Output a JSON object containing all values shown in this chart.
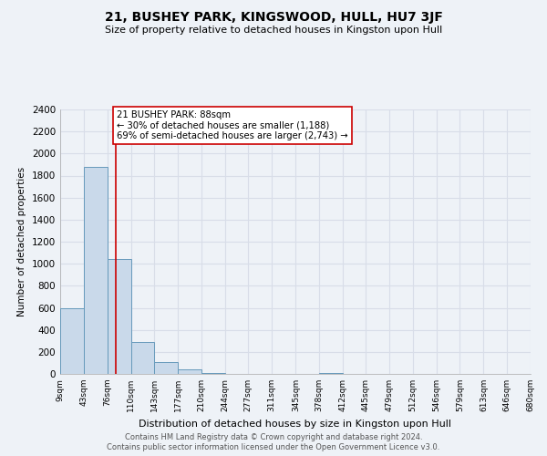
{
  "title": "21, BUSHEY PARK, KINGSWOOD, HULL, HU7 3JF",
  "subtitle": "Size of property relative to detached houses in Kingston upon Hull",
  "xlabel": "Distribution of detached houses by size in Kingston upon Hull",
  "ylabel": "Number of detached properties",
  "bar_edges": [
    9,
    43,
    76,
    110,
    143,
    177,
    210,
    244,
    277,
    311,
    345,
    378,
    412,
    445,
    479,
    512,
    546,
    579,
    613,
    646,
    680
  ],
  "bar_heights": [
    600,
    1880,
    1040,
    290,
    110,
    40,
    10,
    0,
    0,
    0,
    0,
    10,
    0,
    0,
    0,
    0,
    0,
    0,
    0,
    0
  ],
  "bar_color": "#c9d9ea",
  "bar_edge_color": "#6699bb",
  "property_size": 88,
  "property_line_color": "#cc0000",
  "annotation_line1": "21 BUSHEY PARK: 88sqm",
  "annotation_line2": "← 30% of detached houses are smaller (1,188)",
  "annotation_line3": "69% of semi-detached houses are larger (2,743) →",
  "annotation_box_color": "#ffffff",
  "annotation_box_edge_color": "#cc0000",
  "ylim": [
    0,
    2400
  ],
  "yticks": [
    0,
    200,
    400,
    600,
    800,
    1000,
    1200,
    1400,
    1600,
    1800,
    2000,
    2200,
    2400
  ],
  "tick_labels": [
    "9sqm",
    "43sqm",
    "76sqm",
    "110sqm",
    "143sqm",
    "177sqm",
    "210sqm",
    "244sqm",
    "277sqm",
    "311sqm",
    "345sqm",
    "378sqm",
    "412sqm",
    "445sqm",
    "479sqm",
    "512sqm",
    "546sqm",
    "579sqm",
    "613sqm",
    "646sqm",
    "680sqm"
  ],
  "bg_color": "#eef2f7",
  "grid_color": "#d8dde8",
  "footer1": "Contains HM Land Registry data © Crown copyright and database right 2024.",
  "footer2": "Contains public sector information licensed under the Open Government Licence v3.0."
}
